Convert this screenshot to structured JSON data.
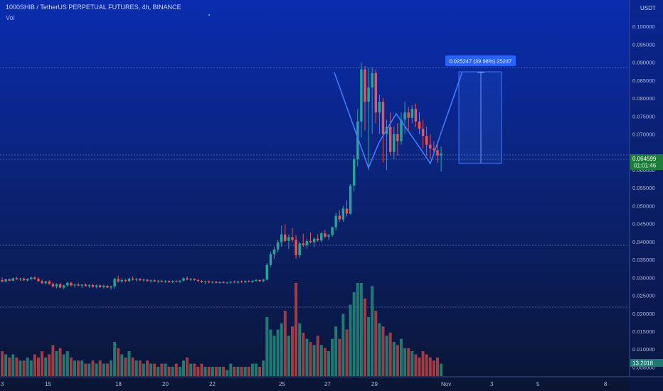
{
  "header": {
    "symbol_line": "1000SHIB / TetherUS PERPETUAL FUTURES, 4h, BINANCE",
    "volume_label": "Vol"
  },
  "price_axis": {
    "currency": "USDT",
    "ticks": [
      "0.100000",
      "0.095000",
      "0.090000",
      "0.085000",
      "0.080000",
      "0.075000",
      "0.070000",
      "0.060000",
      "0.055000",
      "0.050000",
      "0.045000",
      "0.040000",
      "0.035000",
      "0.030000",
      "0.025000",
      "0.020000",
      "0.015000",
      "0.010000",
      "0.005000"
    ],
    "last_price": "0.064599",
    "countdown": "01:01:46",
    "volume_value": "13.2018"
  },
  "date_axis": {
    "labels": [
      "3",
      "15",
      "18",
      "20",
      "22",
      "25",
      "27",
      "29",
      "Nov",
      "3",
      "5",
      "8"
    ]
  },
  "measure_tool": {
    "label": "0.025247 (39.98%) 25247"
  },
  "colors": {
    "up": "#26a69a",
    "down": "#ef5350",
    "up_vol": "#1f7a72",
    "down_vol": "#a23c44",
    "drawing": "#3f7bff",
    "last_price_tag": "#1e7d3a",
    "measure_tag": "#2962ff"
  },
  "chart_data": {
    "type": "candlestick",
    "interval": "4h",
    "price_range": [
      0.0035,
      0.104
    ],
    "volume_range": [
      0,
      30
    ],
    "candles": [
      [
        0.0293,
        0.03,
        0.0286,
        0.0289,
        8
      ],
      [
        0.0289,
        0.0297,
        0.0287,
        0.0295,
        7
      ],
      [
        0.0295,
        0.0298,
        0.0289,
        0.0291,
        6
      ],
      [
        0.0291,
        0.03,
        0.0289,
        0.0298,
        7
      ],
      [
        0.0298,
        0.0302,
        0.0293,
        0.0295,
        6
      ],
      [
        0.0295,
        0.0299,
        0.0291,
        0.0297,
        5
      ],
      [
        0.0297,
        0.03,
        0.029,
        0.0292,
        5
      ],
      [
        0.0292,
        0.0298,
        0.0289,
        0.0296,
        6
      ],
      [
        0.0296,
        0.0302,
        0.0292,
        0.03,
        5
      ],
      [
        0.03,
        0.0303,
        0.0294,
        0.0296,
        7
      ],
      [
        0.0296,
        0.0301,
        0.0288,
        0.029,
        6
      ],
      [
        0.029,
        0.0294,
        0.0282,
        0.0284,
        8
      ],
      [
        0.0284,
        0.0291,
        0.028,
        0.0289,
        6
      ],
      [
        0.0289,
        0.0292,
        0.028,
        0.0282,
        7
      ],
      [
        0.0282,
        0.0287,
        0.0272,
        0.0275,
        10
      ],
      [
        0.0275,
        0.0284,
        0.027,
        0.0281,
        8
      ],
      [
        0.0281,
        0.0285,
        0.027,
        0.0272,
        9
      ],
      [
        0.0272,
        0.028,
        0.0267,
        0.0278,
        7
      ],
      [
        0.0278,
        0.0288,
        0.0274,
        0.0285,
        8
      ],
      [
        0.0285,
        0.0288,
        0.0275,
        0.0278,
        6
      ],
      [
        0.0278,
        0.0283,
        0.0272,
        0.028,
        5
      ],
      [
        0.028,
        0.0285,
        0.0275,
        0.0277,
        5
      ],
      [
        0.0277,
        0.0282,
        0.0271,
        0.028,
        5
      ],
      [
        0.028,
        0.0284,
        0.0274,
        0.0276,
        4
      ],
      [
        0.0276,
        0.0281,
        0.0271,
        0.0279,
        4
      ],
      [
        0.0279,
        0.0283,
        0.0272,
        0.0274,
        5
      ],
      [
        0.0274,
        0.028,
        0.027,
        0.0278,
        4
      ],
      [
        0.0278,
        0.0281,
        0.0271,
        0.0273,
        5
      ],
      [
        0.0273,
        0.028,
        0.027,
        0.0277,
        4
      ],
      [
        0.0277,
        0.0279,
        0.027,
        0.0272,
        4
      ],
      [
        0.0272,
        0.0277,
        0.0266,
        0.0275,
        5
      ],
      [
        0.0275,
        0.03,
        0.0268,
        0.0296,
        11
      ],
      [
        0.0296,
        0.0305,
        0.0286,
        0.0289,
        9
      ],
      [
        0.0289,
        0.0298,
        0.0284,
        0.0293,
        7
      ],
      [
        0.0293,
        0.0296,
        0.0287,
        0.029,
        6
      ],
      [
        0.029,
        0.03,
        0.0288,
        0.0297,
        8
      ],
      [
        0.0297,
        0.0303,
        0.0291,
        0.0294,
        6
      ],
      [
        0.0294,
        0.0299,
        0.0289,
        0.0296,
        5
      ],
      [
        0.0296,
        0.0298,
        0.029,
        0.0292,
        5
      ],
      [
        0.0292,
        0.0297,
        0.0288,
        0.0294,
        4
      ],
      [
        0.0294,
        0.0296,
        0.0288,
        0.029,
        5
      ],
      [
        0.029,
        0.0294,
        0.0286,
        0.0292,
        4
      ],
      [
        0.0292,
        0.0295,
        0.0287,
        0.0289,
        4
      ],
      [
        0.0289,
        0.0293,
        0.0285,
        0.0291,
        3
      ],
      [
        0.0291,
        0.0293,
        0.0286,
        0.0288,
        4
      ],
      [
        0.0288,
        0.0292,
        0.0285,
        0.029,
        4
      ],
      [
        0.029,
        0.0292,
        0.0285,
        0.0287,
        3
      ],
      [
        0.0287,
        0.0292,
        0.0284,
        0.029,
        3
      ],
      [
        0.029,
        0.0293,
        0.0286,
        0.0288,
        4
      ],
      [
        0.0288,
        0.0293,
        0.0285,
        0.0291,
        3
      ],
      [
        0.0291,
        0.0301,
        0.0289,
        0.0298,
        5
      ],
      [
        0.0298,
        0.0303,
        0.0292,
        0.0294,
        6
      ],
      [
        0.0294,
        0.0299,
        0.029,
        0.0296,
        4
      ],
      [
        0.0296,
        0.0298,
        0.0291,
        0.0293,
        4
      ],
      [
        0.0293,
        0.0296,
        0.0288,
        0.029,
        3
      ],
      [
        0.029,
        0.0293,
        0.0285,
        0.0287,
        4
      ],
      [
        0.0287,
        0.0291,
        0.0282,
        0.0289,
        3
      ],
      [
        0.0289,
        0.0292,
        0.0284,
        0.0286,
        3
      ],
      [
        0.0286,
        0.029,
        0.0283,
        0.0288,
        3
      ],
      [
        0.0288,
        0.029,
        0.0283,
        0.0285,
        3
      ],
      [
        0.0285,
        0.0289,
        0.0282,
        0.0287,
        3
      ],
      [
        0.0287,
        0.029,
        0.0283,
        0.0285,
        3
      ],
      [
        0.0285,
        0.0288,
        0.0282,
        0.0286,
        2
      ],
      [
        0.0286,
        0.029,
        0.0283,
        0.0288,
        4
      ],
      [
        0.0288,
        0.0291,
        0.0284,
        0.0286,
        3
      ],
      [
        0.0286,
        0.029,
        0.0283,
        0.0289,
        3
      ],
      [
        0.0289,
        0.0292,
        0.0285,
        0.0287,
        3
      ],
      [
        0.0287,
        0.0291,
        0.0284,
        0.029,
        3
      ],
      [
        0.029,
        0.0293,
        0.0286,
        0.0288,
        3
      ],
      [
        0.0288,
        0.0292,
        0.0285,
        0.0291,
        4
      ],
      [
        0.0291,
        0.0296,
        0.0288,
        0.0293,
        4
      ],
      [
        0.0293,
        0.0295,
        0.0287,
        0.029,
        3
      ],
      [
        0.029,
        0.0296,
        0.0287,
        0.0294,
        5
      ],
      [
        0.0294,
        0.034,
        0.0292,
        0.0335,
        19
      ],
      [
        0.0335,
        0.0372,
        0.033,
        0.0365,
        15
      ],
      [
        0.0365,
        0.0385,
        0.0352,
        0.0378,
        13
      ],
      [
        0.0378,
        0.0405,
        0.037,
        0.0398,
        15
      ],
      [
        0.0398,
        0.0445,
        0.0385,
        0.042,
        17
      ],
      [
        0.042,
        0.0448,
        0.0398,
        0.0402,
        21
      ],
      [
        0.0402,
        0.042,
        0.038,
        0.0412,
        13
      ],
      [
        0.0412,
        0.0438,
        0.0398,
        0.0405,
        16
      ],
      [
        0.0405,
        0.0418,
        0.0352,
        0.0362,
        30
      ],
      [
        0.0362,
        0.04,
        0.0355,
        0.0395,
        17
      ],
      [
        0.0395,
        0.0422,
        0.0385,
        0.039,
        14
      ],
      [
        0.039,
        0.0408,
        0.038,
        0.0402,
        12
      ],
      [
        0.0402,
        0.0425,
        0.0395,
        0.0398,
        11
      ],
      [
        0.0398,
        0.0412,
        0.0385,
        0.0408,
        10
      ],
      [
        0.0408,
        0.042,
        0.04,
        0.0403,
        13
      ],
      [
        0.0403,
        0.0428,
        0.0398,
        0.0423,
        10
      ],
      [
        0.0423,
        0.0432,
        0.041,
        0.0414,
        9
      ],
      [
        0.0414,
        0.0422,
        0.0405,
        0.0418,
        8
      ],
      [
        0.0418,
        0.0442,
        0.0414,
        0.044,
        12
      ],
      [
        0.044,
        0.048,
        0.0432,
        0.0472,
        16
      ],
      [
        0.0472,
        0.0488,
        0.0455,
        0.0462,
        12
      ],
      [
        0.0462,
        0.05,
        0.0455,
        0.0492,
        20
      ],
      [
        0.0492,
        0.0515,
        0.047,
        0.0478,
        15
      ],
      [
        0.0478,
        0.056,
        0.0475,
        0.0556,
        23
      ],
      [
        0.0556,
        0.064,
        0.054,
        0.063,
        27
      ],
      [
        0.063,
        0.077,
        0.061,
        0.0735,
        30
      ],
      [
        0.0735,
        0.09,
        0.069,
        0.088,
        30
      ],
      [
        0.088,
        0.089,
        0.071,
        0.079,
        25
      ],
      [
        0.079,
        0.0885,
        0.06,
        0.083,
        19
      ],
      [
        0.083,
        0.0885,
        0.07,
        0.087,
        29
      ],
      [
        0.087,
        0.088,
        0.073,
        0.076,
        21
      ],
      [
        0.076,
        0.081,
        0.07,
        0.079,
        17
      ],
      [
        0.079,
        0.08,
        0.062,
        0.07,
        16
      ],
      [
        0.07,
        0.074,
        0.06,
        0.072,
        13
      ],
      [
        0.072,
        0.076,
        0.064,
        0.065,
        14
      ],
      [
        0.065,
        0.072,
        0.063,
        0.07,
        11
      ],
      [
        0.07,
        0.073,
        0.064,
        0.068,
        10
      ],
      [
        0.068,
        0.076,
        0.067,
        0.074,
        12
      ],
      [
        0.074,
        0.079,
        0.07,
        0.076,
        9
      ],
      [
        0.076,
        0.0775,
        0.071,
        0.0745,
        9
      ],
      [
        0.0745,
        0.078,
        0.073,
        0.077,
        8
      ],
      [
        0.077,
        0.0785,
        0.072,
        0.0735,
        7
      ],
      [
        0.0735,
        0.076,
        0.07,
        0.0715,
        6
      ],
      [
        0.0715,
        0.074,
        0.066,
        0.0695,
        8
      ],
      [
        0.0695,
        0.072,
        0.064,
        0.067,
        7
      ],
      [
        0.067,
        0.07,
        0.063,
        0.066,
        6
      ],
      [
        0.066,
        0.068,
        0.064,
        0.0655,
        5
      ],
      [
        0.0655,
        0.068,
        0.062,
        0.064,
        6
      ],
      [
        0.064,
        0.0665,
        0.0595,
        0.0646,
        4
      ]
    ]
  }
}
